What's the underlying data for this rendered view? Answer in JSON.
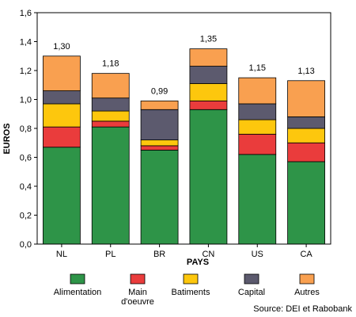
{
  "chart_data": {
    "type": "bar",
    "stacked": true,
    "xlabel": "PAYS",
    "ylabel": "EUROS",
    "ylim": [
      0,
      1.6
    ],
    "yticks": [
      "0,0",
      "0,2",
      "0,4",
      "0,6",
      "0,8",
      "1,0",
      "1,2",
      "1,4",
      "1,6"
    ],
    "categories": [
      "NL",
      "PL",
      "BR",
      "CN",
      "US",
      "CA"
    ],
    "totals": [
      "1,30",
      "1,18",
      "0,99",
      "1,35",
      "1,15",
      "1,13"
    ],
    "series": [
      {
        "name": "Alimentation",
        "color": "#2e9448",
        "values": [
          0.67,
          0.81,
          0.65,
          0.93,
          0.62,
          0.57
        ]
      },
      {
        "name": "Main\nd'oeuvre",
        "color": "#ea3c3c",
        "values": [
          0.14,
          0.04,
          0.03,
          0.06,
          0.14,
          0.13
        ]
      },
      {
        "name": "Batiments",
        "color": "#fdc70d",
        "values": [
          0.16,
          0.07,
          0.04,
          0.12,
          0.1,
          0.1
        ]
      },
      {
        "name": "Capital",
        "color": "#5c5a6e",
        "values": [
          0.09,
          0.09,
          0.21,
          0.12,
          0.11,
          0.08
        ]
      },
      {
        "name": "Autres",
        "color": "#f9a050",
        "values": [
          0.24,
          0.17,
          0.06,
          0.12,
          0.18,
          0.25
        ]
      }
    ],
    "grid": false,
    "legend": "bottom"
  },
  "source": "Source: DEI et Rabobank"
}
